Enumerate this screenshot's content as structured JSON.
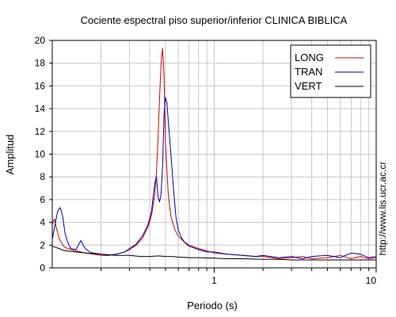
{
  "chart_data": {
    "type": "line",
    "title": "Cociente espectral piso superior/inferior  CLINICA BIBLICA",
    "xlabel": "Periodo (s)",
    "ylabel": "Amplitud",
    "x_scale": "log",
    "xlim": [
      0.1,
      10
    ],
    "ylim": [
      0,
      20
    ],
    "grid": true,
    "legend_position": "top-right",
    "y_ticks": [
      "0",
      "2",
      "4",
      "6",
      "8",
      "10",
      "12",
      "14",
      "16",
      "18",
      "20"
    ],
    "x_tick_labels": [
      {
        "value": 1,
        "label": "1"
      },
      {
        "value": 10,
        "label": "10"
      }
    ],
    "side_text": "http://www.lis.ucr.ac.cr",
    "series": [
      {
        "name": "LONG",
        "color": "#d40000",
        "x": [
          0.1,
          0.103,
          0.107,
          0.11,
          0.115,
          0.12,
          0.13,
          0.14,
          0.15,
          0.16,
          0.18,
          0.2,
          0.22,
          0.25,
          0.28,
          0.3,
          0.33,
          0.36,
          0.39,
          0.41,
          0.43,
          0.44,
          0.45,
          0.46,
          0.47,
          0.48,
          0.49,
          0.5,
          0.52,
          0.54,
          0.57,
          0.6,
          0.65,
          0.7,
          0.8,
          0.9,
          1.0,
          1.2,
          1.5,
          1.8,
          2.0,
          2.5,
          3.0,
          3.5,
          4.0,
          5.0,
          6.0,
          7.0,
          8.0,
          9.0,
          10.0
        ],
        "y": [
          3.8,
          4.3,
          3.3,
          2.6,
          2.1,
          1.8,
          1.6,
          1.5,
          1.4,
          1.3,
          1.2,
          1.1,
          1.1,
          1.2,
          1.4,
          1.6,
          2.0,
          2.6,
          3.6,
          4.6,
          6.5,
          8.5,
          11.5,
          15.0,
          18.0,
          19.3,
          17.0,
          11.0,
          6.5,
          4.5,
          3.4,
          2.8,
          2.3,
          2.0,
          1.7,
          1.5,
          1.3,
          1.2,
          1.1,
          1.0,
          1.0,
          0.8,
          0.9,
          1.0,
          0.8,
          0.9,
          1.1,
          0.8,
          1.0,
          0.8,
          0.9
        ]
      },
      {
        "name": "TRAN",
        "color": "#0000b4",
        "x": [
          0.1,
          0.104,
          0.108,
          0.112,
          0.116,
          0.12,
          0.125,
          0.13,
          0.14,
          0.15,
          0.16,
          0.17,
          0.18,
          0.2,
          0.22,
          0.25,
          0.28,
          0.3,
          0.33,
          0.36,
          0.39,
          0.41,
          0.43,
          0.44,
          0.45,
          0.46,
          0.47,
          0.48,
          0.49,
          0.5,
          0.51,
          0.52,
          0.53,
          0.54,
          0.56,
          0.58,
          0.6,
          0.63,
          0.66,
          0.7,
          0.8,
          0.9,
          1.0,
          1.2,
          1.5,
          1.8,
          2.0,
          2.5,
          3.0,
          3.5,
          4.0,
          5.0,
          6.0,
          7.0,
          8.0,
          9.0,
          10.0
        ],
        "y": [
          2.5,
          3.8,
          5.0,
          5.3,
          4.5,
          3.0,
          2.2,
          1.7,
          1.6,
          2.4,
          1.7,
          1.4,
          1.3,
          1.2,
          1.1,
          1.2,
          1.4,
          1.7,
          2.1,
          2.8,
          3.8,
          5.0,
          7.5,
          8.0,
          6.2,
          5.8,
          6.5,
          9.0,
          13.5,
          15.0,
          14.5,
          13.0,
          11.5,
          10.0,
          7.0,
          4.5,
          3.3,
          2.6,
          2.2,
          1.9,
          1.6,
          1.4,
          1.4,
          1.2,
          1.1,
          1.0,
          1.1,
          0.9,
          1.0,
          0.8,
          1.0,
          1.1,
          0.9,
          1.3,
          1.2,
          0.9,
          1.0
        ]
      },
      {
        "name": "VERT",
        "color": "#000000",
        "x": [
          0.1,
          0.11,
          0.12,
          0.14,
          0.16,
          0.2,
          0.25,
          0.3,
          0.35,
          0.4,
          0.45,
          0.5,
          0.55,
          0.6,
          0.7,
          0.8,
          1.0,
          1.2,
          1.5,
          2.0,
          2.5,
          3.0,
          4.0,
          5.0,
          6.0,
          7.0,
          8.0,
          10.0
        ],
        "y": [
          1.9,
          1.7,
          1.5,
          1.4,
          1.3,
          1.2,
          1.1,
          1.1,
          1.0,
          1.0,
          1.05,
          1.0,
          1.0,
          0.95,
          0.9,
          0.9,
          0.85,
          0.8,
          0.8,
          0.75,
          0.75,
          0.7,
          0.7,
          0.7,
          0.7,
          0.7,
          0.7,
          0.7
        ]
      }
    ]
  }
}
